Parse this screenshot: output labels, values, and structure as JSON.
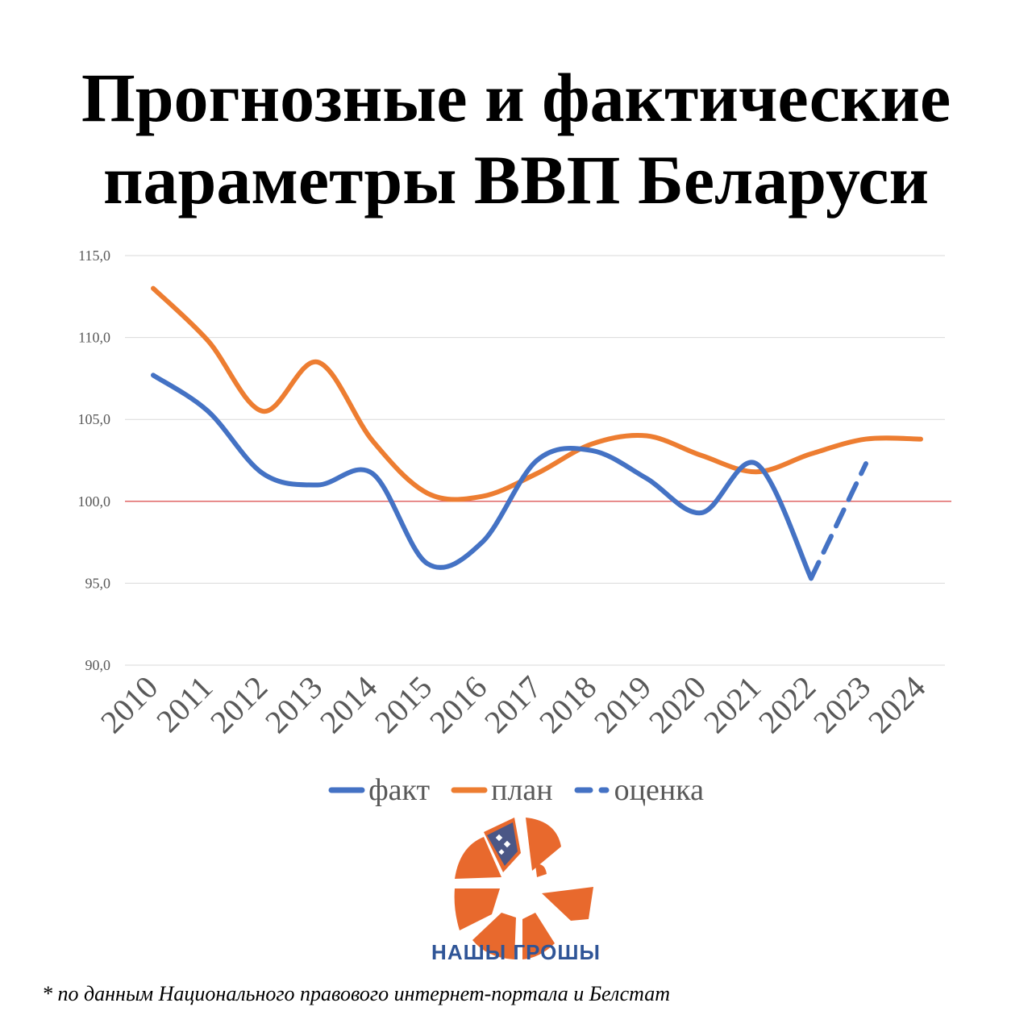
{
  "title": {
    "line1": "Прогнозные и фактические",
    "line2": "параметры ВВП Беларуси"
  },
  "chart_data": {
    "type": "line",
    "categories": [
      "2010",
      "2011",
      "2012",
      "2013",
      "2014",
      "2015",
      "2016",
      "2017",
      "2018",
      "2019",
      "2020",
      "2021",
      "2022",
      "2023",
      "2024"
    ],
    "ylim": [
      90,
      115
    ],
    "yticks": [
      "90,0",
      "95,0",
      "100,0",
      "105,0",
      "110,0",
      "115,0"
    ],
    "reference_line": {
      "value": 100,
      "color": "#e06666"
    },
    "grid": true,
    "legend_position": "bottom",
    "series": [
      {
        "name": "факт",
        "color": "#4472c4",
        "dash": false,
        "values": [
          107.7,
          105.5,
          101.7,
          101.0,
          101.7,
          96.2,
          97.5,
          102.5,
          103.1,
          101.4,
          99.3,
          102.3,
          95.3,
          null,
          null
        ]
      },
      {
        "name": "план",
        "color": "#ed7d31",
        "dash": false,
        "values": [
          113.0,
          109.8,
          105.5,
          108.5,
          103.7,
          100.5,
          100.3,
          101.7,
          103.5,
          104.0,
          102.8,
          101.8,
          102.9,
          103.8,
          103.8
        ]
      },
      {
        "name": "оценка",
        "color": "#4472c4",
        "dash": true,
        "values": [
          null,
          null,
          null,
          null,
          null,
          null,
          null,
          null,
          null,
          null,
          null,
          null,
          95.3,
          102.3,
          null
        ]
      }
    ]
  },
  "legend": {
    "fact": "факт",
    "plan": "план",
    "estimate": "оценка"
  },
  "logo": {
    "name": "logo-icon",
    "text": "НАШЫ ГРОШЫ"
  },
  "footnote": "* по данным Национального правового интернет-портала и Белстат"
}
